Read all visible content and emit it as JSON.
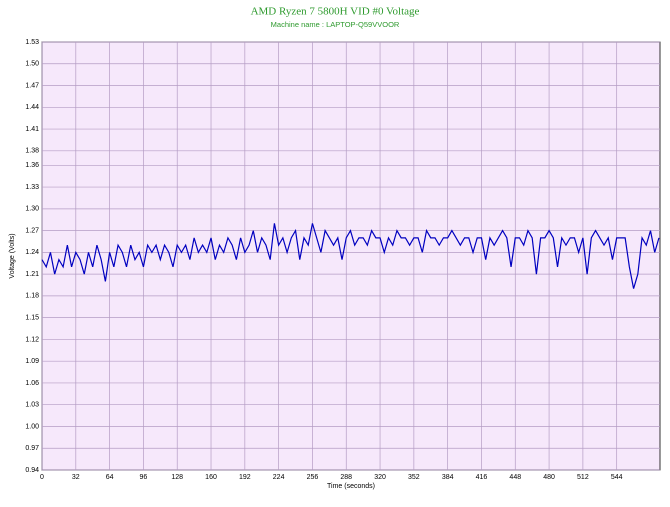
{
  "chart_data": {
    "type": "line",
    "title": "AMD Ryzen 7 5800H VID #0 Voltage",
    "subtitle": "Machine name : LAPTOP-Q59VVOOR",
    "x_label": "Time (seconds)",
    "y_label": "Voltage (Volts)",
    "color": "#0000c0",
    "grid": true,
    "xlim": [
      0,
      585
    ],
    "ylim": [
      0.94,
      1.53
    ],
    "xticks": [
      0,
      32,
      64,
      96,
      128,
      160,
      192,
      224,
      256,
      288,
      320,
      352,
      384,
      416,
      448,
      480,
      512,
      544
    ],
    "yticks": [
      0.94,
      0.97,
      {
        "value": 1.0,
        "label": "1.00"
      },
      1.03,
      1.06,
      1.09,
      1.12,
      1.15,
      1.18,
      1.21,
      1.24,
      1.27,
      {
        "value": 1.3,
        "label": "1.30"
      },
      1.33,
      1.36,
      1.38,
      1.41,
      1.44,
      1.47,
      {
        "value": 1.5,
        "label": "1.50"
      },
      1.53
    ],
    "x": [
      0,
      4,
      8,
      12,
      16,
      20,
      24,
      28,
      32,
      36,
      40,
      44,
      48,
      52,
      56,
      60,
      64,
      68,
      72,
      76,
      80,
      84,
      88,
      92,
      96,
      100,
      104,
      108,
      112,
      116,
      120,
      124,
      128,
      132,
      136,
      140,
      144,
      148,
      152,
      156,
      160,
      164,
      168,
      172,
      176,
      180,
      184,
      188,
      192,
      196,
      200,
      204,
      208,
      212,
      216,
      220,
      224,
      228,
      232,
      236,
      240,
      244,
      248,
      252,
      256,
      260,
      264,
      268,
      272,
      276,
      280,
      284,
      288,
      292,
      296,
      300,
      304,
      308,
      312,
      316,
      320,
      324,
      328,
      332,
      336,
      340,
      344,
      348,
      352,
      356,
      360,
      364,
      368,
      372,
      376,
      380,
      384,
      388,
      392,
      396,
      400,
      404,
      408,
      412,
      416,
      420,
      424,
      428,
      432,
      436,
      440,
      444,
      448,
      452,
      456,
      460,
      464,
      468,
      472,
      476,
      480,
      484,
      488,
      492,
      496,
      500,
      504,
      508,
      512,
      516,
      520,
      524,
      528,
      532,
      536,
      540,
      544,
      548,
      552,
      556,
      560,
      564,
      568,
      572,
      576,
      580,
      584
    ],
    "values": [
      1.23,
      1.22,
      1.24,
      1.21,
      1.23,
      1.22,
      1.25,
      1.22,
      1.24,
      1.23,
      1.21,
      1.24,
      1.22,
      1.25,
      1.23,
      1.2,
      1.24,
      1.22,
      1.25,
      1.24,
      1.22,
      1.25,
      1.23,
      1.24,
      1.22,
      1.25,
      1.24,
      1.25,
      1.23,
      1.25,
      1.24,
      1.22,
      1.25,
      1.24,
      1.25,
      1.23,
      1.26,
      1.24,
      1.25,
      1.24,
      1.26,
      1.23,
      1.25,
      1.24,
      1.26,
      1.25,
      1.23,
      1.26,
      1.24,
      1.25,
      1.27,
      1.24,
      1.26,
      1.25,
      1.23,
      1.28,
      1.25,
      1.26,
      1.24,
      1.26,
      1.27,
      1.23,
      1.26,
      1.25,
      1.28,
      1.26,
      1.24,
      1.27,
      1.26,
      1.25,
      1.26,
      1.23,
      1.26,
      1.27,
      1.25,
      1.26,
      1.26,
      1.25,
      1.27,
      1.26,
      1.26,
      1.24,
      1.26,
      1.25,
      1.27,
      1.26,
      1.26,
      1.25,
      1.26,
      1.26,
      1.24,
      1.27,
      1.26,
      1.26,
      1.25,
      1.26,
      1.26,
      1.27,
      1.26,
      1.25,
      1.26,
      1.26,
      1.24,
      1.26,
      1.26,
      1.23,
      1.26,
      1.25,
      1.26,
      1.27,
      1.26,
      1.22,
      1.26,
      1.26,
      1.25,
      1.27,
      1.26,
      1.21,
      1.26,
      1.26,
      1.27,
      1.26,
      1.22,
      1.26,
      1.25,
      1.26,
      1.26,
      1.24,
      1.26,
      1.21,
      1.26,
      1.27,
      1.26,
      1.25,
      1.26,
      1.23,
      1.26,
      1.26,
      1.26,
      1.22,
      1.19,
      1.21,
      1.26,
      1.25,
      1.27,
      1.24,
      1.26
    ]
  }
}
